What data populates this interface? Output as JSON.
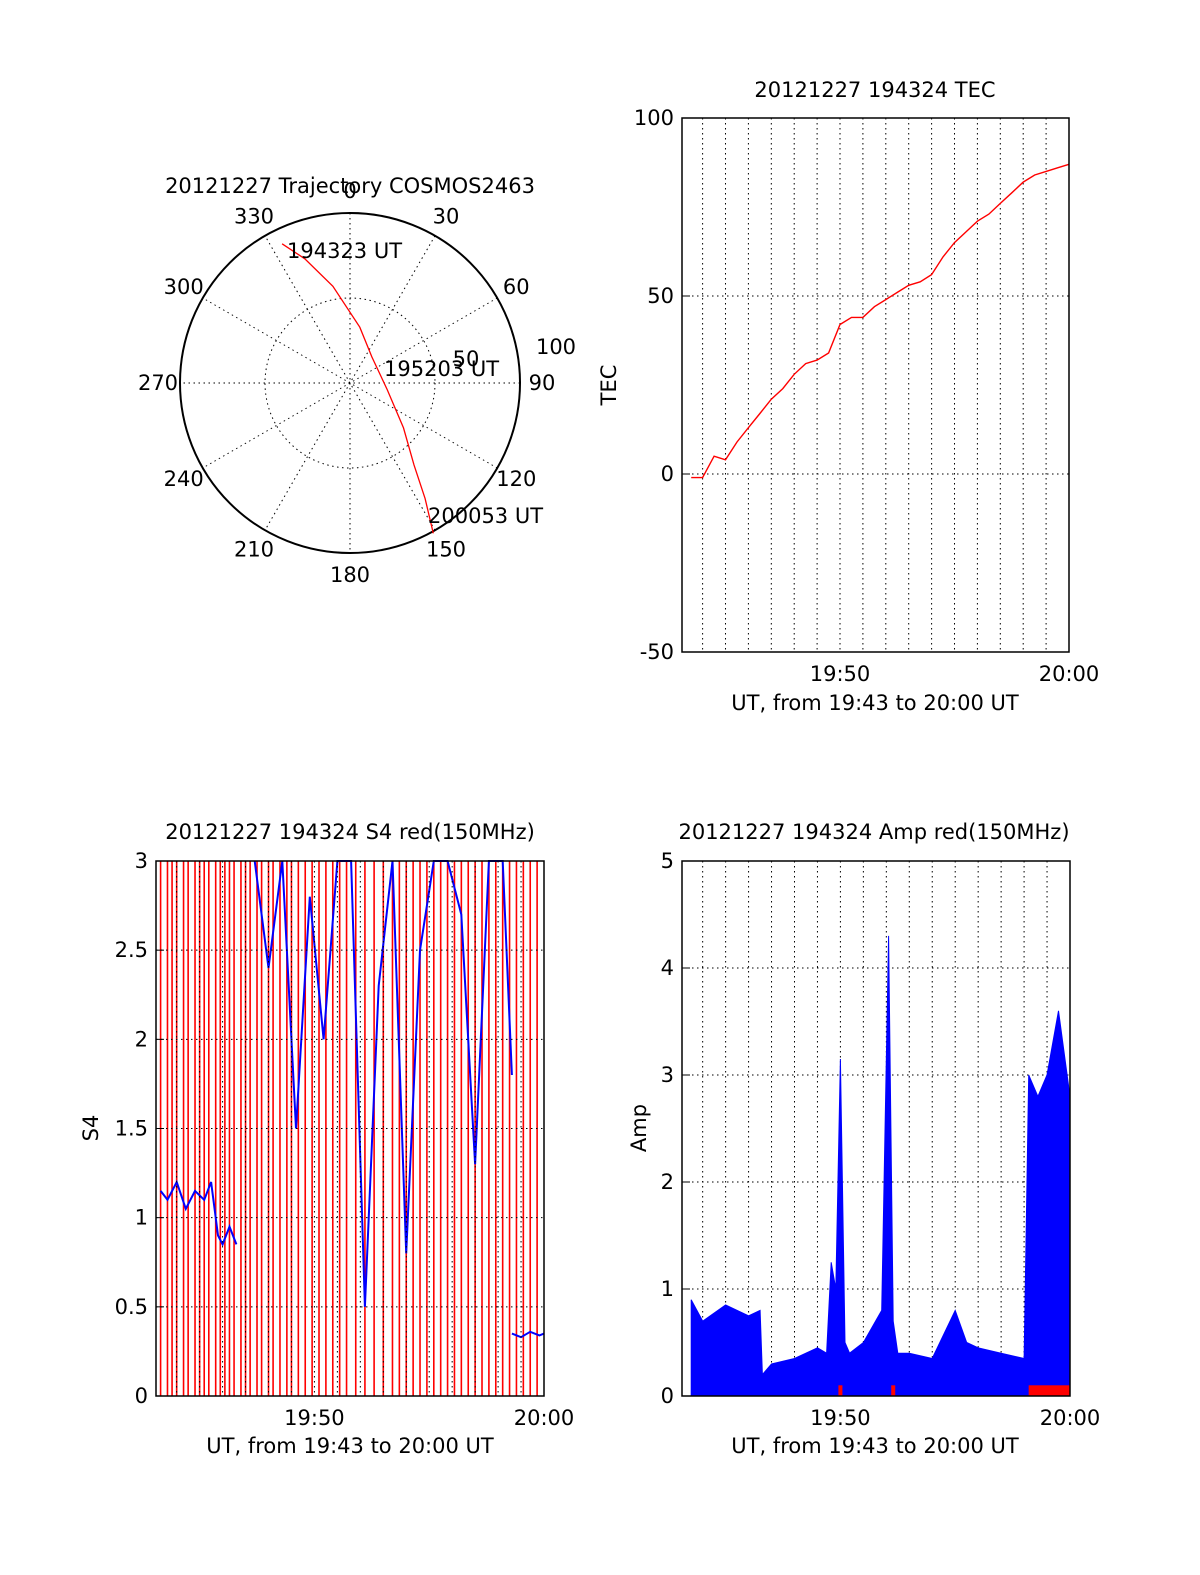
{
  "colors": {
    "red": "#ff0000",
    "blue": "#0000ff",
    "black": "#000000"
  },
  "chart_data": [
    {
      "id": "trajectory",
      "type": "polar",
      "title": "20121227 Trajectory COSMOS2463",
      "angle_labels": [
        "0",
        "30",
        "60",
        "90",
        "120",
        "150",
        "180",
        "210",
        "240",
        "270",
        "300",
        "330"
      ],
      "radial_labels": [
        "50",
        "100"
      ],
      "rmax": 90,
      "grid": true,
      "series": [
        {
          "color": "red",
          "points": [
            [
              334,
              82
            ],
            [
              340,
              70
            ],
            [
              350,
              52
            ],
            [
              10,
              30
            ],
            [
              40,
              18
            ],
            [
              100,
              20
            ],
            [
              130,
              37
            ],
            [
              142,
              55
            ],
            [
              147,
              73
            ],
            [
              151,
              91
            ]
          ]
        }
      ],
      "annotations": [
        {
          "text": "194323 UT",
          "at": [
            334,
            82
          ]
        },
        {
          "text": "195203 UT",
          "at": [
            100,
            20
          ]
        },
        {
          "text": "200053 UT",
          "at": [
            151,
            91
          ]
        }
      ]
    },
    {
      "id": "tec",
      "type": "line",
      "title": "20121227 194324 TEC",
      "xlabel": "UT, from 19:43 to 20:00 UT",
      "ylabel": "TEC",
      "xlim_minutes": [
        43.1,
        60.0
      ],
      "ylim": [
        -50,
        100
      ],
      "yticks": [
        "100",
        "50",
        "0",
        "-50"
      ],
      "xticks": [
        {
          "minute": 50,
          "label": "19:50"
        },
        {
          "minute": 60,
          "label": "20:00"
        }
      ],
      "grid": true,
      "series": [
        {
          "color": "red",
          "x": [
            43.5,
            44.0,
            44.5,
            45.0,
            45.5,
            46.0,
            46.5,
            47.0,
            47.5,
            48.0,
            48.5,
            49.0,
            49.5,
            50.0,
            50.5,
            51.0,
            51.5,
            52.0,
            52.5,
            53.0,
            53.5,
            54.0,
            54.5,
            55.0,
            55.5,
            56.0,
            56.5,
            57.0,
            57.5,
            58.0,
            58.5,
            59.0,
            59.5,
            60.0
          ],
          "y": [
            -1,
            -1,
            5,
            4,
            9,
            13,
            17,
            21,
            24,
            28,
            31,
            32,
            34,
            42,
            44,
            44,
            47,
            49,
            51,
            53,
            54,
            56,
            61,
            65,
            68,
            71,
            73,
            76,
            79,
            82,
            84,
            85,
            86,
            87
          ]
        }
      ]
    },
    {
      "id": "s4",
      "type": "line",
      "title": "20121227 194324 S4 red(150MHz)",
      "xlabel": "UT, from 19:43 to 20:00 UT",
      "ylabel": "S4",
      "xlim_minutes": [
        43.1,
        60.0
      ],
      "ylim": [
        0,
        3
      ],
      "yticks": [
        "3",
        "2.5",
        "2",
        "1.5",
        "1",
        "0.5",
        "0"
      ],
      "xticks": [
        {
          "minute": 50,
          "label": "19:50"
        },
        {
          "minute": 60,
          "label": "20:00"
        }
      ],
      "grid": true,
      "red_spikes_minutes": [
        43.3,
        43.6,
        43.8,
        44.0,
        44.3,
        44.5,
        44.8,
        45.0,
        45.2,
        45.4,
        45.7,
        45.9,
        46.1,
        46.3,
        46.5,
        46.8,
        47.0,
        47.2,
        47.5,
        47.7,
        48.0,
        48.2,
        48.5,
        48.8,
        49.0,
        49.3,
        49.6,
        49.9,
        50.2,
        50.5,
        50.8,
        51.1,
        51.4,
        51.8,
        52.2,
        52.6,
        53.0,
        53.4,
        53.7,
        54.0,
        54.3,
        54.6,
        54.9,
        55.2,
        55.5,
        55.8,
        56.1,
        56.4,
        56.7,
        57.0,
        57.3,
        57.6,
        57.9,
        58.2,
        58.5,
        58.8,
        59.1,
        59.4,
        59.7
      ],
      "blue_segments": [
        {
          "x": [
            43.3,
            43.6,
            44.0,
            44.4,
            44.8,
            45.2,
            45.5,
            45.8,
            46.0,
            46.3,
            46.6
          ],
          "y": [
            1.15,
            1.1,
            1.2,
            1.05,
            1.15,
            1.1,
            1.2,
            0.9,
            0.85,
            0.95,
            0.85
          ]
        },
        {
          "x": [
            47.4,
            48.0,
            48.6,
            49.2,
            49.8,
            50.4,
            51.0,
            51.6,
            52.2,
            52.8,
            53.4,
            54.0,
            54.6,
            55.2,
            55.8,
            56.4,
            57.0,
            57.6,
            58.2,
            58.6
          ],
          "y": [
            3,
            2.4,
            3,
            1.5,
            2.8,
            2.0,
            3,
            3,
            0.5,
            2.3,
            3,
            0.8,
            2.5,
            3,
            3,
            2.7,
            1.3,
            3,
            3,
            1.8
          ]
        },
        {
          "x": [
            58.6,
            59.0,
            59.4,
            59.8,
            60.0
          ],
          "y": [
            0.35,
            0.33,
            0.36,
            0.34,
            0.35
          ]
        }
      ]
    },
    {
      "id": "amp",
      "type": "line",
      "title": "20121227 194324 Amp red(150MHz)",
      "xlabel": "UT, from 19:43 to 20:00 UT",
      "ylabel": "Amp",
      "xlim_minutes": [
        43.1,
        60.0
      ],
      "ylim": [
        0,
        5
      ],
      "yticks": [
        "5",
        "4",
        "3",
        "2",
        "1",
        "0"
      ],
      "xticks": [
        {
          "minute": 50,
          "label": "19:50"
        },
        {
          "minute": 60,
          "label": "20:00"
        }
      ],
      "grid": true,
      "blue_envelope": {
        "x": [
          43.5,
          44.0,
          45.0,
          46.0,
          46.5,
          46.6,
          47.0,
          48.0,
          49.0,
          49.4,
          49.6,
          49.8,
          50.0,
          50.2,
          50.4,
          51.0,
          51.8,
          52.1,
          52.3,
          52.5,
          53.0,
          54.0,
          55.0,
          55.5,
          56.0,
          57.0,
          58.0,
          58.2,
          58.6,
          59.0,
          59.5,
          60.0
        ],
        "y": [
          0.9,
          0.7,
          0.85,
          0.75,
          0.8,
          0.2,
          0.3,
          0.35,
          0.45,
          0.4,
          1.25,
          1.0,
          3.15,
          0.5,
          0.4,
          0.5,
          0.8,
          4.3,
          0.7,
          0.4,
          0.4,
          0.35,
          0.8,
          0.5,
          0.45,
          0.4,
          0.35,
          3.0,
          2.8,
          3.0,
          3.6,
          2.8
        ]
      },
      "red_floor": {
        "x": [
          58.2,
          60.0
        ],
        "y": 0.1
      },
      "red_marks_minutes": [
        50.0,
        52.3
      ]
    }
  ]
}
